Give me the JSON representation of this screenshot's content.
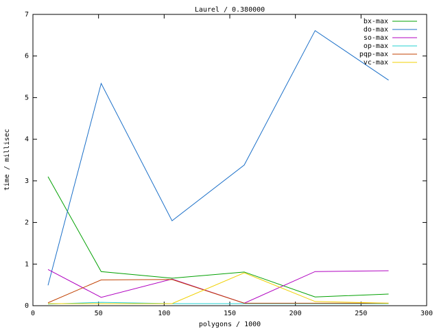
{
  "chart_data": {
    "type": "line",
    "title": "Laurel / 0.380000",
    "x_label": "polygons / 1000",
    "y_label": "time / millisec",
    "x": [
      11.5,
      52,
      106,
      161,
      215,
      271
    ],
    "series": [
      {
        "name": "bx-max",
        "color": "#00a000",
        "values": [
          3.1,
          0.82,
          0.66,
          0.81,
          0.21,
          0.28
        ]
      },
      {
        "name": "do-max",
        "color": "#1a6fc8",
        "values": [
          0.49,
          5.34,
          2.04,
          3.38,
          6.61,
          5.42
        ]
      },
      {
        "name": "so-max",
        "color": "#b000c0",
        "values": [
          0.87,
          0.2,
          0.64,
          0.06,
          0.82,
          0.84
        ]
      },
      {
        "name": "op-max",
        "color": "#20d0d0",
        "values": [
          0.04,
          0.08,
          0.05,
          0.05,
          0.05,
          0.05
        ]
      },
      {
        "name": "pqp-max",
        "color": "#c04000",
        "values": [
          0.07,
          0.62,
          0.63,
          0.06,
          0.06,
          0.06
        ]
      },
      {
        "name": "vc-max",
        "color": "#f0d000",
        "values": [
          0.05,
          0.05,
          0.05,
          0.79,
          0.1,
          0.06
        ]
      }
    ],
    "xlim": [
      0,
      300
    ],
    "xticks": [
      0,
      50,
      100,
      150,
      200,
      250,
      300
    ],
    "ylim": [
      0,
      7
    ],
    "yticks": [
      0,
      1,
      2,
      3,
      4,
      5,
      6,
      7
    ],
    "legend": "top-right"
  }
}
